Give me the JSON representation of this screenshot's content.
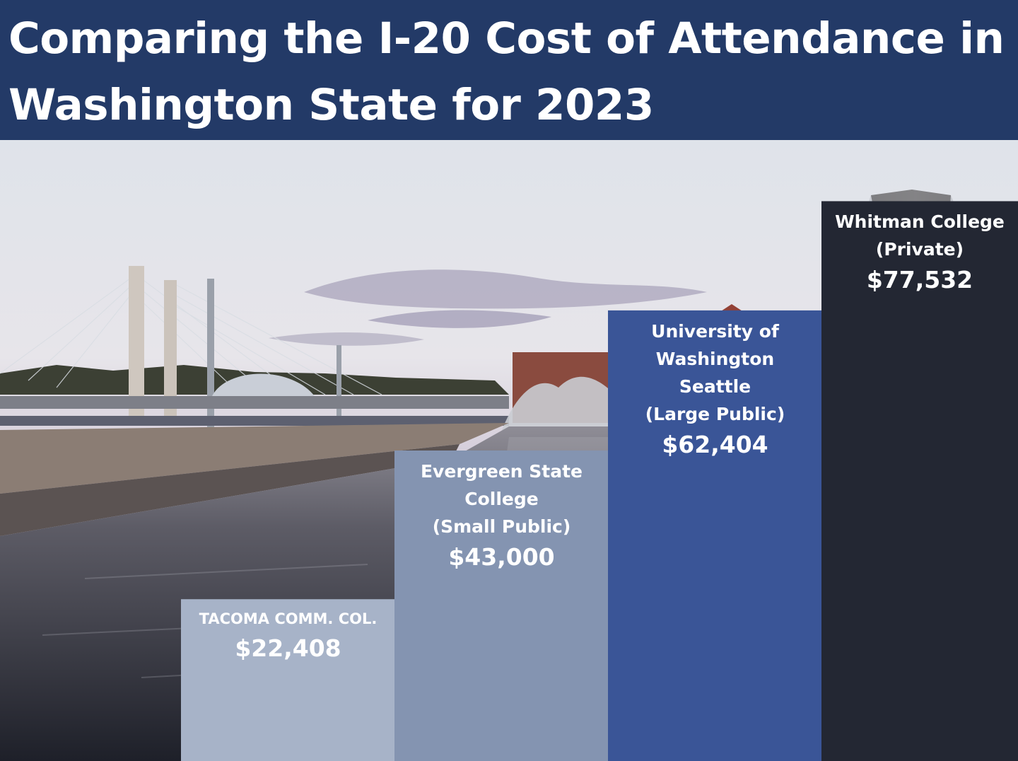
{
  "title": "Comparing the I-20 Cost of Attendance in Washington State for 2023",
  "background_photo": "tacoma-waterfront-photo",
  "colors": {
    "title_bar": "#233a67",
    "tacoma": "#a7b3c8",
    "evergreen": "#8494b1",
    "uw": "#3a5597",
    "whitman": "#232733"
  },
  "chart_data": {
    "type": "bar",
    "title": "Comparing the I-20 Cost of Attendance in Washington State for 2023",
    "xlabel": "",
    "ylabel": "",
    "categories": [
      "TACOMA COMM. COL.",
      "Evergreen State College (Small Public)",
      "University of Washington Seattle (Large Public)",
      "Whitman College (Private)"
    ],
    "values": [
      22408,
      43000,
      62404,
      77532
    ],
    "ylim": [
      0,
      86000
    ],
    "grid": false,
    "bars": [
      {
        "name": "TACOMA COMM. COL.",
        "value": 22408,
        "value_label": "$22,408",
        "color": "#a7b3c8"
      },
      {
        "name": "Evergreen State\nCollege\n(Small Public)",
        "value": 43000,
        "value_label": "$43,000",
        "color": "#8494b1"
      },
      {
        "name": "University of\nWashington\nSeattle\n(Large Public)",
        "value": 62404,
        "value_label": "$62,404",
        "color": "#3a5597"
      },
      {
        "name": "Whitman College\n(Private)",
        "value": 77532,
        "value_label": "$77,532",
        "color": "#232733"
      }
    ]
  }
}
